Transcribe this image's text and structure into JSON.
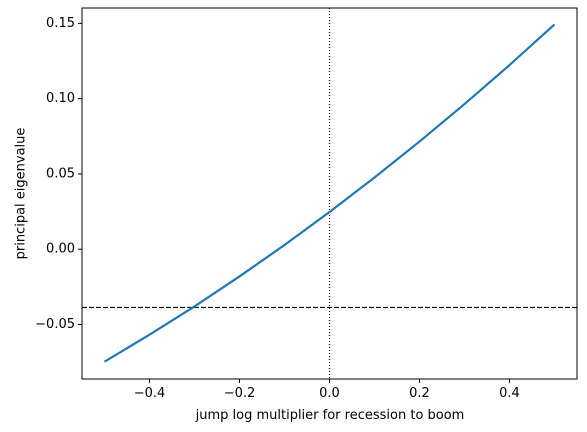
{
  "chart_data": {
    "type": "line",
    "xlabel": "jump log multiplier for recession to boom",
    "ylabel": "principal eigenvalue",
    "x": [
      -0.5,
      -0.4,
      -0.3,
      -0.2,
      -0.1,
      0.0,
      0.1,
      0.2,
      0.3,
      0.4,
      0.5
    ],
    "series": [
      {
        "color": "#1f77b4",
        "values": [
          -0.0747,
          -0.0568,
          -0.038,
          -0.0181,
          0.0028,
          0.0247,
          0.0476,
          0.0715,
          0.0964,
          0.1223,
          0.1493
        ]
      }
    ],
    "xlim": [
      -0.55,
      0.55
    ],
    "ylim": [
      -0.0862,
      0.1602
    ],
    "xticks": [
      {
        "value": -0.4,
        "label": "−0.4"
      },
      {
        "value": -0.2,
        "label": "−0.2"
      },
      {
        "value": 0.0,
        "label": "0.0"
      },
      0.2,
      0.4
    ],
    "yticks": [
      {
        "value": -0.05,
        "label": "−0.05"
      },
      {
        "value": 0.0,
        "label": "0.00"
      },
      0.05,
      {
        "value": 0.1,
        "label": "0.10"
      },
      0.15
    ],
    "hline": -0.0387,
    "vline": 0.0,
    "grid": false
  }
}
